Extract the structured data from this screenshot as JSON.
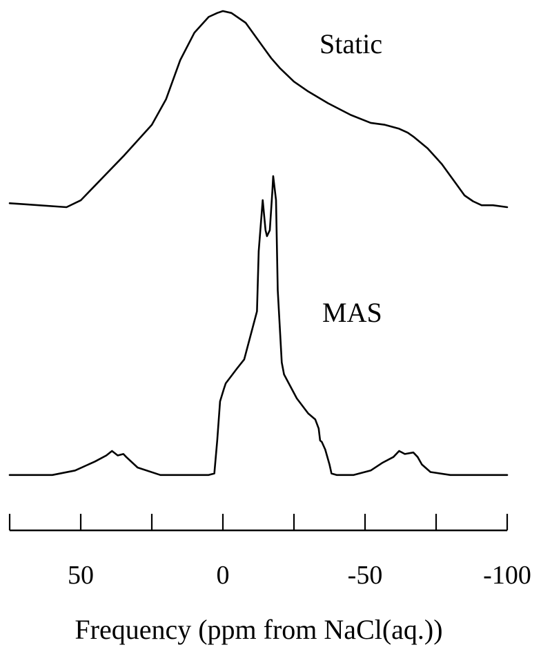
{
  "chart_data": {
    "type": "line",
    "title": "",
    "xlabel": "Frequency (ppm from NaCl(aq.))",
    "ylabel": "",
    "xlim": [
      75,
      -100
    ],
    "x_reversed": true,
    "y_axis_shown": false,
    "grid": false,
    "xticks": [
      50,
      0,
      -50,
      -100
    ],
    "xtick_labels": [
      "50",
      "0",
      "-50",
      "-100"
    ],
    "minor_xticks": [
      75,
      25,
      -25,
      -75
    ],
    "series": [
      {
        "name": "Static",
        "x": [
          75,
          70,
          55,
          50,
          45,
          35,
          25,
          20,
          15,
          10,
          5,
          2,
          0,
          -3,
          -8,
          -12,
          -17,
          -20,
          -25,
          -30,
          -37,
          -45,
          -52,
          -57,
          -62,
          -65,
          -67,
          -72,
          -77,
          -82,
          -85,
          -88,
          -91,
          -95,
          -100
        ],
        "y": [
          0.02,
          0.015,
          0.0,
          0.035,
          0.11,
          0.26,
          0.42,
          0.55,
          0.75,
          0.89,
          0.97,
          0.99,
          1.0,
          0.99,
          0.94,
          0.86,
          0.76,
          0.71,
          0.64,
          0.59,
          0.53,
          0.47,
          0.43,
          0.42,
          0.4,
          0.38,
          0.36,
          0.3,
          0.22,
          0.12,
          0.06,
          0.03,
          0.01,
          0.01,
          0.0
        ]
      },
      {
        "name": "MAS",
        "x": [
          75,
          60,
          52,
          45,
          41,
          39,
          37,
          35,
          34,
          30,
          22,
          5,
          3,
          2,
          1,
          -0.3,
          -1,
          -5,
          -7.5,
          -12,
          -12.6,
          -14,
          -15,
          -15.5,
          -16.5,
          -17.4,
          -17.7,
          -18.7,
          -19.3,
          -20.7,
          -21.5,
          -26,
          -30,
          -32.5,
          -33.7,
          -34.2,
          -34.8,
          -36,
          -37.5,
          -38.2,
          -40,
          -46,
          -52,
          -56,
          -60,
          -62,
          -64,
          -67,
          -68.5,
          -70,
          -73,
          -80,
          -88,
          -100
        ],
        "y": [
          0.005,
          0.005,
          0.02,
          0.05,
          0.07,
          0.085,
          0.07,
          0.075,
          0.065,
          0.03,
          0.005,
          0.005,
          0.01,
          0.12,
          0.25,
          0.29,
          0.31,
          0.36,
          0.39,
          0.55,
          0.75,
          0.92,
          0.82,
          0.8,
          0.82,
          0.95,
          1.0,
          0.92,
          0.62,
          0.38,
          0.34,
          0.26,
          0.21,
          0.19,
          0.16,
          0.12,
          0.115,
          0.09,
          0.04,
          0.01,
          0.005,
          0.005,
          0.02,
          0.045,
          0.065,
          0.085,
          0.075,
          0.08,
          0.065,
          0.04,
          0.015,
          0.005,
          0.005,
          0.005
        ]
      }
    ]
  }
}
